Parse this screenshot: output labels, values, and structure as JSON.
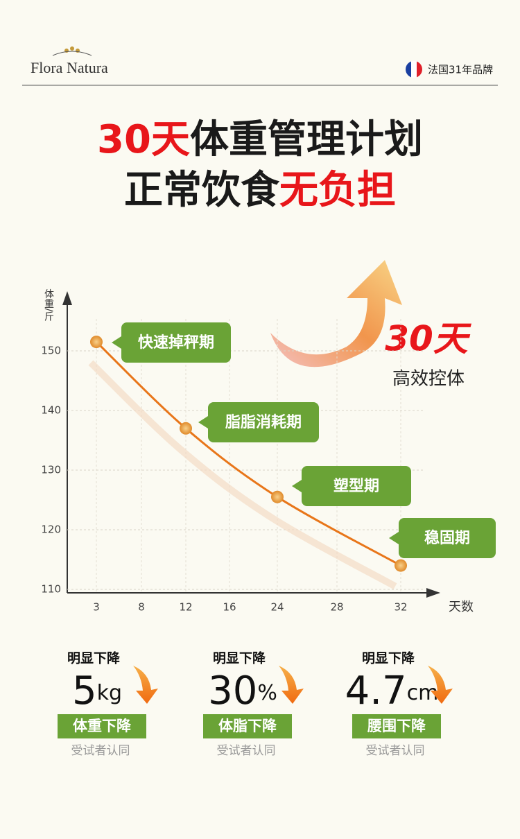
{
  "header": {
    "brand": "Flora Natura",
    "badge": "法国31年品牌"
  },
  "title": {
    "line1": [
      {
        "text": "30天",
        "accent": true
      },
      {
        "text": "体重管理计划",
        "accent": false
      }
    ],
    "line2": [
      {
        "text": "正常饮食",
        "accent": false
      },
      {
        "text": "无负担",
        "accent": true
      }
    ]
  },
  "chart_data": {
    "type": "line",
    "y_label": "体重/斤",
    "x_label": "天数",
    "xticks": [
      3,
      8,
      12,
      16,
      24,
      28,
      32
    ],
    "series": [
      {
        "x": [
          3,
          12,
          24,
          32
        ],
        "values": [
          151.5,
          137,
          125.5,
          114
        ],
        "color": "#e8761a"
      }
    ],
    "phases": [
      "快速掉秤期",
      "脂脂消耗期",
      "塑型期",
      "稳固期"
    ],
    "ylim": [
      110,
      160
    ],
    "yticks": [
      110,
      120,
      130,
      140,
      150
    ],
    "grid": true,
    "callout": {
      "big": "30天",
      "small": "高效控体"
    }
  },
  "stats": [
    {
      "label": "明显下降",
      "value": 5,
      "unit": "kg",
      "tag": "体重下降",
      "note": "受试者认同"
    },
    {
      "label": "明显下降",
      "value": 30,
      "unit": "%",
      "tag": "体脂下降",
      "note": "受试者认同"
    },
    {
      "label": "明显下降",
      "value": 4.7,
      "unit": "cm",
      "tag": "腰围下降",
      "note": "受试者认同"
    }
  ]
}
